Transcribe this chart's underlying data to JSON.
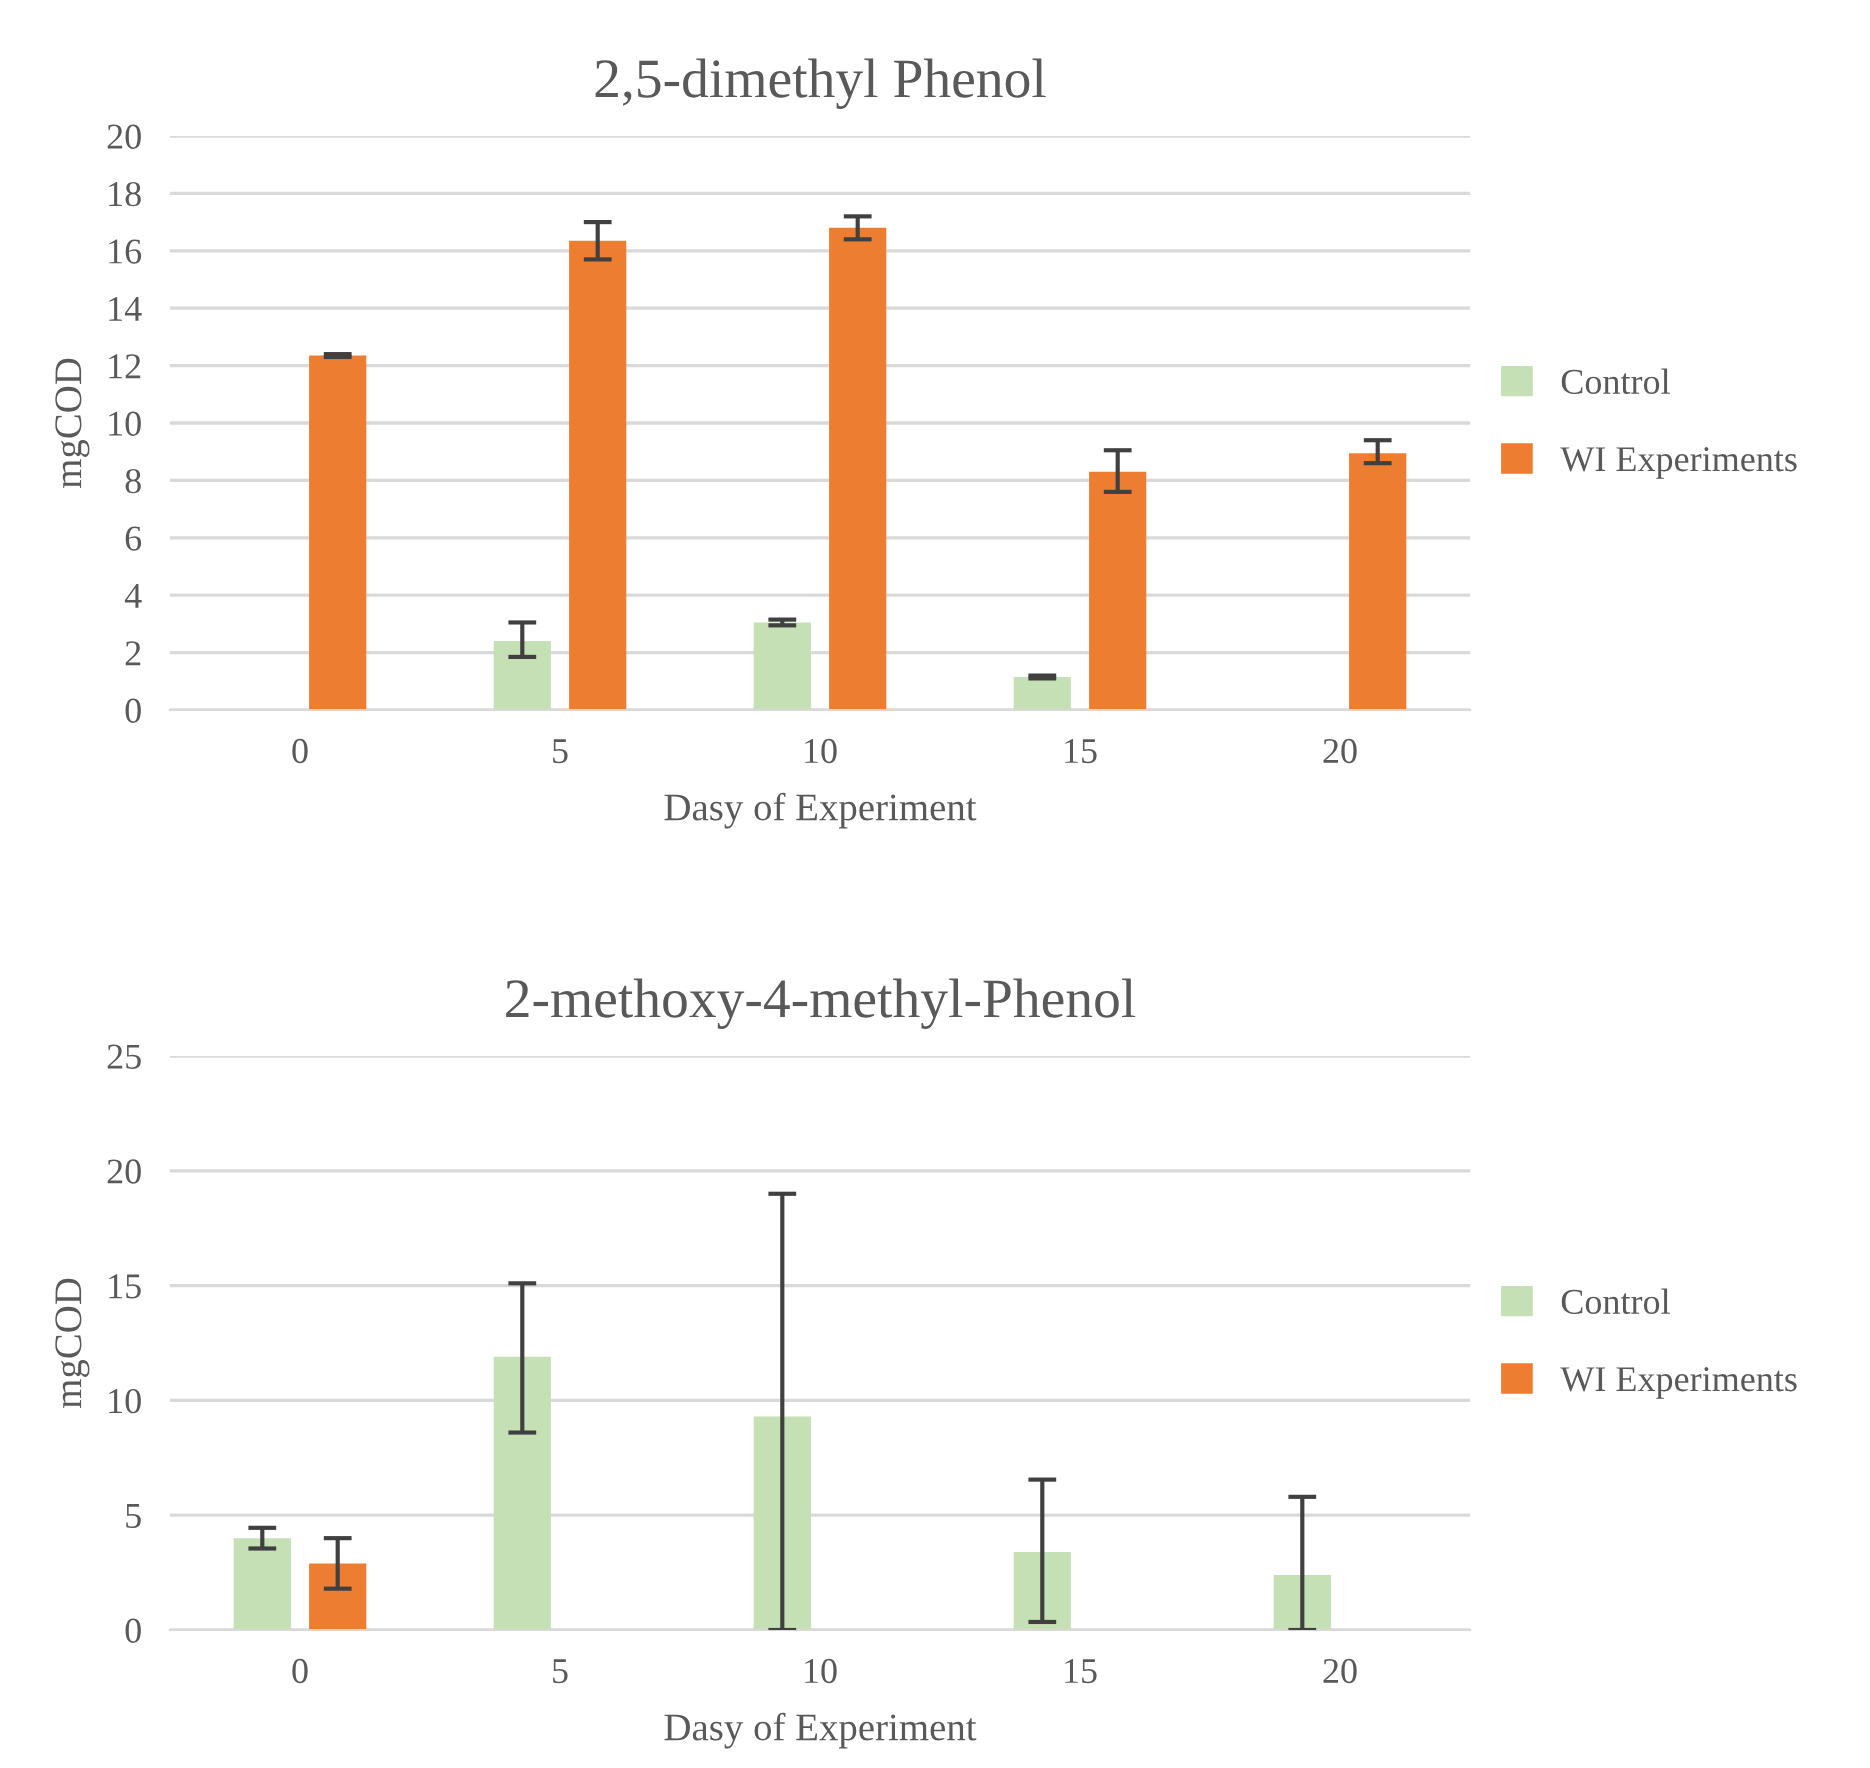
{
  "chart_data": [
    {
      "type": "bar",
      "title": "2,5-dimethyl Phenol",
      "xlabel": "Dasy of Experiment",
      "ylabel": "mgCOD",
      "categories": [
        "0",
        "5",
        "10",
        "15",
        "20"
      ],
      "ylim": [
        0,
        20
      ],
      "yticks": [
        0,
        2,
        4,
        6,
        8,
        10,
        12,
        14,
        16,
        18,
        20
      ],
      "grid": "y",
      "legend": "right",
      "series": [
        {
          "name": "Control",
          "color": "#c5e0b4",
          "values": [
            null,
            2.4,
            3.05,
            1.15,
            null
          ],
          "errors": [
            null,
            [
              1.85,
              3.05
            ],
            [
              2.95,
              3.15
            ],
            [
              1.1,
              1.2
            ],
            null
          ]
        },
        {
          "name": "WI Experiments",
          "color": "#ed7d31",
          "values": [
            12.35,
            16.35,
            16.8,
            8.3,
            8.95
          ],
          "errors": [
            [
              12.3,
              12.4
            ],
            [
              15.7,
              17.0
            ],
            [
              16.4,
              17.2
            ],
            [
              7.6,
              9.05
            ],
            [
              8.6,
              9.4
            ]
          ]
        }
      ]
    },
    {
      "type": "bar",
      "title": "2-methoxy-4-methyl-Phenol",
      "xlabel": "Dasy of Experiment",
      "ylabel": "mgCOD",
      "categories": [
        "0",
        "5",
        "10",
        "15",
        "20"
      ],
      "ylim": [
        0,
        25
      ],
      "yticks": [
        0,
        5,
        10,
        15,
        20,
        25
      ],
      "grid": "y",
      "legend": "right",
      "series": [
        {
          "name": "Control",
          "color": "#c5e0b4",
          "values": [
            4.0,
            11.9,
            9.3,
            3.4,
            2.4
          ],
          "errors": [
            [
              3.55,
              4.45
            ],
            [
              8.6,
              15.1
            ],
            [
              0,
              19.0
            ],
            [
              0.35,
              6.55
            ],
            [
              0,
              5.8
            ]
          ]
        },
        {
          "name": "WI Experiments",
          "color": "#ed7d31",
          "values": [
            2.9,
            null,
            null,
            null,
            null
          ],
          "errors": [
            [
              1.8,
              4.0
            ],
            null,
            null,
            null,
            null
          ]
        }
      ]
    }
  ]
}
